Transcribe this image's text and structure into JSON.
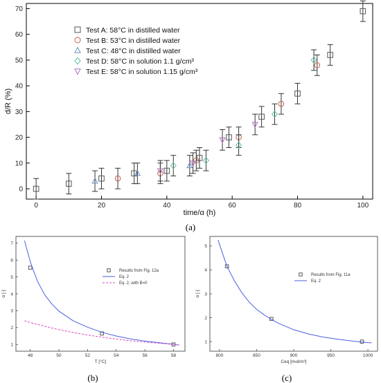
{
  "chart_data": [
    {
      "panel": "(a)",
      "type": "scatter",
      "xlabel": "time/α (h)",
      "ylabel": "d/R (%)",
      "xlim": [
        -3,
        103
      ],
      "ylim": [
        -4,
        72
      ],
      "xticks": [
        0,
        20,
        40,
        60,
        80,
        100
      ],
      "yticks": [
        0,
        10,
        20,
        30,
        40,
        50,
        60,
        70
      ],
      "grid": false,
      "legend_position": "top-left",
      "series": [
        {
          "name": "Test A: 58°C in distilled water",
          "marker": "square",
          "color": "#555555",
          "points": [
            [
              0,
              0
            ],
            [
              10,
              2
            ],
            [
              20,
              4
            ],
            [
              30,
              6
            ],
            [
              40,
              7
            ],
            [
              50,
              12
            ],
            [
              59,
              20
            ],
            [
              69,
              28
            ],
            [
              80,
              37
            ],
            [
              90,
              52
            ],
            [
              100,
              69
            ]
          ]
        },
        {
          "name": "Test B: 53°C in distilled water",
          "marker": "circle",
          "color": "#c0604a",
          "points": [
            [
              25,
              4
            ],
            [
              38,
              6
            ],
            [
              49,
              11
            ],
            [
              62,
              20
            ],
            [
              75,
              33
            ],
            [
              86,
              48
            ]
          ]
        },
        {
          "name": "Test C: 48°C in distilled water",
          "marker": "triangle-up",
          "color": "#6a8fc0",
          "points": [
            [
              18,
              3
            ],
            [
              31,
              6
            ],
            [
              47,
              9
            ]
          ]
        },
        {
          "name": "Test D: 58°C in solution 1.1 g/cm³",
          "marker": "diamond",
          "color": "#5fbfa6",
          "points": [
            [
              42,
              9
            ],
            [
              52,
              11
            ],
            [
              62,
              17
            ],
            [
              73,
              29
            ],
            [
              85,
              50
            ]
          ]
        },
        {
          "name": "Test E: 58°C in solution 1.15 g/cm³",
          "marker": "triangle-down",
          "color": "#b070c0",
          "points": [
            [
              38,
              7
            ],
            [
              48,
              10
            ],
            [
              57,
              19
            ],
            [
              67,
              25
            ]
          ]
        }
      ],
      "error_bar": 4
    },
    {
      "panel": "(b)",
      "type": "line",
      "xlabel": "T [°C]",
      "ylabel": "α [-]",
      "xlim": [
        47,
        58.8
      ],
      "ylim": [
        0.6,
        7.4
      ],
      "xticks": [
        48,
        50,
        52,
        54,
        56,
        58
      ],
      "yticks": [
        1,
        2,
        3,
        4,
        5,
        6,
        7
      ],
      "legend_position": "top-right",
      "series": [
        {
          "name": "Results from Fig. 12a",
          "kind": "markers",
          "color": "#555555",
          "points": [
            [
              48,
              5.55
            ],
            [
              53,
              1.65
            ],
            [
              58,
              1.0
            ]
          ]
        },
        {
          "name": "Eq. 2",
          "kind": "solid",
          "color": "#4a5ee0",
          "points": [
            [
              47.6,
              7.15
            ],
            [
              48,
              5.9
            ],
            [
              48.5,
              4.75
            ],
            [
              49,
              3.95
            ],
            [
              49.5,
              3.4
            ],
            [
              50,
              2.97
            ],
            [
              51,
              2.4
            ],
            [
              52,
              2.02
            ],
            [
              53,
              1.72
            ],
            [
              54,
              1.5
            ],
            [
              55,
              1.33
            ],
            [
              56,
              1.2
            ],
            [
              57,
              1.1
            ],
            [
              58,
              1.01
            ],
            [
              58.4,
              0.96
            ]
          ]
        },
        {
          "name": "Eq. 2, with B=0",
          "kind": "dashed",
          "color": "#e040c0",
          "points": [
            [
              47.6,
              2.4
            ],
            [
              48,
              2.3
            ],
            [
              49,
              2.08
            ],
            [
              50,
              1.88
            ],
            [
              51,
              1.71
            ],
            [
              52,
              1.56
            ],
            [
              53,
              1.43
            ],
            [
              54,
              1.32
            ],
            [
              55,
              1.22
            ],
            [
              56,
              1.14
            ],
            [
              57,
              1.07
            ],
            [
              58,
              1.0
            ],
            [
              58.4,
              0.97
            ]
          ]
        }
      ]
    },
    {
      "panel": "(c)",
      "type": "line",
      "xlabel": "Ceq [mol/m³]",
      "ylabel": "α [-]",
      "xlim": [
        787,
        1013
      ],
      "ylim": [
        0.6,
        5.4
      ],
      "xticks": [
        800,
        850,
        900,
        950,
        1000
      ],
      "yticks": [
        1,
        2,
        3,
        4,
        5
      ],
      "legend_position": "top-right",
      "series": [
        {
          "name": "Results from Fig. 11a",
          "kind": "markers",
          "color": "#555555",
          "points": [
            [
              810,
              4.15
            ],
            [
              870,
              1.95
            ],
            [
              992,
              1.0
            ]
          ]
        },
        {
          "name": "Eq. 2",
          "kind": "solid",
          "color": "#4a5ee0",
          "points": [
            [
              798,
              5.25
            ],
            [
              805,
              4.6
            ],
            [
              810,
              4.15
            ],
            [
              820,
              3.55
            ],
            [
              830,
              3.05
            ],
            [
              840,
              2.65
            ],
            [
              850,
              2.35
            ],
            [
              860,
              2.12
            ],
            [
              870,
              1.93
            ],
            [
              880,
              1.76
            ],
            [
              900,
              1.5
            ],
            [
              920,
              1.32
            ],
            [
              940,
              1.19
            ],
            [
              960,
              1.1
            ],
            [
              980,
              1.02
            ],
            [
              1000,
              0.96
            ],
            [
              1005,
              0.95
            ]
          ]
        }
      ]
    }
  ],
  "panel_labels": {
    "a": "(a)",
    "b": "(b)",
    "c": "(c)"
  }
}
